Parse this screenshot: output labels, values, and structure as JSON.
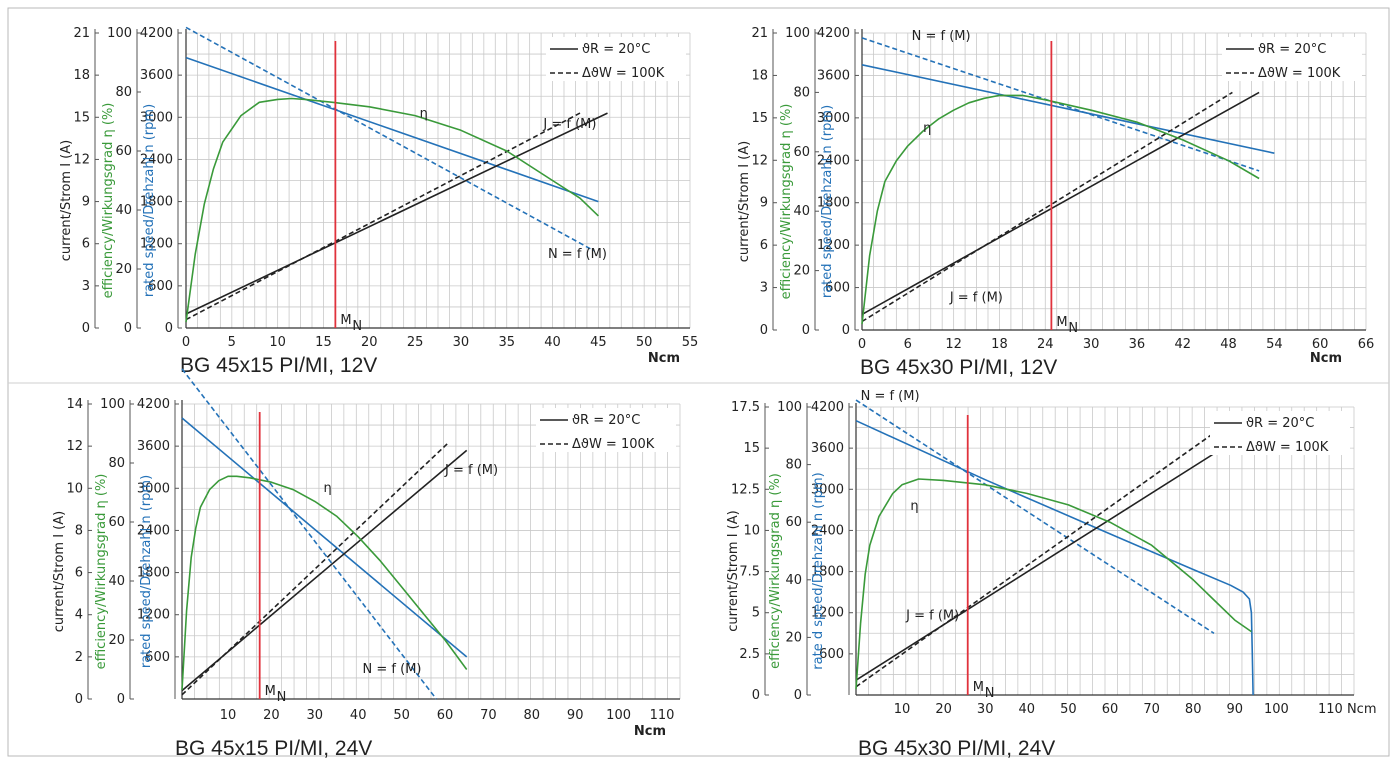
{
  "chart_data": [
    {
      "type": "line",
      "title": "BG 45x15 PI/MI, 12V",
      "xlabel": "Ncm",
      "x_ticks": [
        "0",
        "5",
        "10",
        "15",
        "20",
        "25",
        "30",
        "35",
        "40",
        "45",
        "50",
        "55"
      ],
      "xlim": [
        0,
        55
      ],
      "axes": {
        "current": {
          "label": "current/Strom I (A)",
          "ticks": [
            "0",
            "3",
            "6",
            "9",
            "12",
            "15",
            "18",
            "21"
          ],
          "lim": [
            0,
            21
          ],
          "color": "#222222"
        },
        "efficiency": {
          "label": "efficiency/Wirkungsgrad η (%)",
          "ticks": [
            "0",
            "20",
            "40",
            "60",
            "80",
            "100"
          ],
          "lim": [
            0,
            100
          ],
          "color": "#3a9a3a"
        },
        "speed": {
          "label": "rated speed/Drehzahl n (rpm)",
          "ticks": [
            "0",
            "600",
            "1200",
            "1800",
            "2400",
            "3000",
            "3600",
            "4200"
          ],
          "lim": [
            0,
            4200
          ],
          "color": "#2472b8"
        }
      },
      "legend": [
        "ϑR = 20°C",
        "ΔϑW = 100K"
      ],
      "marker": {
        "label": "M",
        "sub": "N",
        "x": 16.3
      },
      "curve_labels": [
        {
          "text": "η",
          "x": 25.5,
          "y": 3000,
          "color": "#3a9a3a"
        },
        {
          "text": "J = f (M)",
          "x": 39,
          "y": 2850,
          "color": "#222222"
        },
        {
          "text": "N = f (M)",
          "x": 39.5,
          "y": 1000,
          "color": "#2472b8"
        }
      ],
      "series": [
        {
          "key": "n20",
          "axis": "speed",
          "dash": false,
          "color": "#2472b8",
          "x": [
            0,
            45
          ],
          "y": [
            3850,
            1800
          ]
        },
        {
          "key": "n100",
          "axis": "speed",
          "dash": true,
          "color": "#2472b8",
          "x": [
            0,
            44.5
          ],
          "y": [
            4280,
            1100
          ]
        },
        {
          "key": "i20",
          "axis": "current",
          "dash": false,
          "color": "#222222",
          "x": [
            0,
            46
          ],
          "y": [
            1.0,
            15.3
          ]
        },
        {
          "key": "i100",
          "axis": "current",
          "dash": true,
          "color": "#222222",
          "x": [
            0,
            43
          ],
          "y": [
            0.6,
            15.3
          ]
        },
        {
          "key": "eta",
          "axis": "efficiency",
          "dash": false,
          "color": "#3a9a3a",
          "x": [
            0,
            1,
            2,
            3,
            4,
            6,
            8,
            10,
            11.5,
            13,
            16,
            20,
            25,
            30,
            35,
            40,
            43,
            45
          ],
          "y": [
            2,
            25,
            42,
            54,
            63,
            72,
            76.5,
            77.5,
            77.8,
            77.5,
            76.5,
            75,
            72,
            67,
            60,
            50,
            44,
            38
          ]
        }
      ]
    },
    {
      "type": "line",
      "title": "BG 45x30 PI/MI, 12V",
      "xlabel": "Ncm",
      "x_ticks": [
        "0",
        "6",
        "12",
        "18",
        "24",
        "30",
        "36",
        "42",
        "48",
        "54",
        "60",
        "66"
      ],
      "xlim": [
        0,
        66
      ],
      "axes": {
        "current": {
          "label": "current/Strom I (A)",
          "ticks": [
            "0",
            "3",
            "6",
            "9",
            "12",
            "15",
            "18",
            "21"
          ],
          "lim": [
            0,
            21
          ],
          "color": "#222222"
        },
        "efficiency": {
          "label": "efficiency/Wirkungsgrad η (%)",
          "ticks": [
            "0",
            "20",
            "40",
            "60",
            "80",
            "100"
          ],
          "lim": [
            0,
            100
          ],
          "color": "#3a9a3a"
        },
        "speed": {
          "label": "rated speed/Drehzahl n (rpm)",
          "ticks": [
            "0",
            "600",
            "1200",
            "1800",
            "2400",
            "3000",
            "3600",
            "4200"
          ],
          "lim": [
            0,
            4200
          ],
          "color": "#2472b8"
        }
      },
      "legend": [
        "ϑR = 20°C",
        "ΔϑW = 100K"
      ],
      "marker": {
        "label": "M",
        "sub": "N",
        "x": 24.8
      },
      "curve_labels": [
        {
          "text": "η",
          "x": 8,
          "y": 2800,
          "color": "#3a9a3a"
        },
        {
          "text": "J = f (M)",
          "x": 11.5,
          "y": 400,
          "color": "#222222"
        },
        {
          "text": "N = f (M)",
          "x": 6.5,
          "y": 4100,
          "color": "#2472b8"
        }
      ],
      "series": [
        {
          "key": "n20",
          "axis": "speed",
          "dash": false,
          "color": "#2472b8",
          "x": [
            0,
            54
          ],
          "y": [
            3750,
            2500
          ]
        },
        {
          "key": "n100",
          "axis": "speed",
          "dash": true,
          "color": "#2472b8",
          "x": [
            0,
            52
          ],
          "y": [
            4130,
            2250
          ]
        },
        {
          "key": "i20",
          "axis": "current",
          "dash": false,
          "color": "#222222",
          "x": [
            0,
            52
          ],
          "y": [
            1.1,
            16.8
          ]
        },
        {
          "key": "i100",
          "axis": "current",
          "dash": true,
          "color": "#222222",
          "x": [
            0,
            48.5
          ],
          "y": [
            0.6,
            16.8
          ]
        },
        {
          "key": "eta",
          "axis": "efficiency",
          "dash": false,
          "color": "#3a9a3a",
          "x": [
            0,
            1,
            2,
            3,
            4.5,
            6,
            8,
            10,
            12,
            14,
            16,
            18,
            21,
            24,
            30,
            36,
            42,
            48,
            52
          ],
          "y": [
            2,
            25,
            40,
            50,
            57,
            62,
            67,
            71,
            74,
            76.5,
            78,
            79,
            79,
            77.5,
            74,
            70,
            64,
            57,
            51
          ]
        }
      ]
    },
    {
      "type": "line",
      "title": "BG 45x15 PI/MI, 24V",
      "xlabel": "Ncm",
      "x_ticks": [
        "10",
        "20",
        "30",
        "40",
        "50",
        "60",
        "70",
        "80",
        "90",
        "100",
        "110"
      ],
      "xlim": [
        0,
        120
      ],
      "axes": {
        "current": {
          "label": "current/Strom I (A)",
          "ticks": [
            "0",
            "2",
            "4",
            "6",
            "8",
            "10",
            "12",
            "14"
          ],
          "lim": [
            0,
            14
          ],
          "color": "#222222"
        },
        "efficiency": {
          "label": "efficiency/Wirkungsgrad η (%)",
          "ticks": [
            "0",
            "20",
            "40",
            "60",
            "80",
            "100"
          ],
          "lim": [
            0,
            100
          ],
          "color": "#3a9a3a"
        },
        "speed": {
          "label": "rated speed/Drehzahl n (rpm)",
          "ticks": [
            "600",
            "1200",
            "1800",
            "2400",
            "3000",
            "3600",
            "4200"
          ],
          "lim": [
            0,
            4200
          ],
          "color": "#2472b8"
        }
      },
      "legend": [
        "ϑR = 20°C",
        "ΔϑW = 100K"
      ],
      "marker": {
        "label": "M",
        "sub": "N",
        "x": 17.3
      },
      "curve_labels": [
        {
          "text": "η",
          "x": 32,
          "y": 2950,
          "color": "#3a9a3a"
        },
        {
          "text": "J = f (M)",
          "x": 60,
          "y": 3200,
          "color": "#222222"
        },
        {
          "text": "N = f (M)",
          "x": 41,
          "y": 370,
          "color": "#2472b8"
        }
      ],
      "series": [
        {
          "key": "n20",
          "axis": "speed",
          "dash": false,
          "color": "#2472b8",
          "x": [
            0,
            65
          ],
          "y": [
            4000,
            600
          ]
        },
        {
          "key": "n100",
          "axis": "speed",
          "dash": true,
          "color": "#2472b8",
          "x": [
            0,
            58
          ],
          "y": [
            4700,
            0
          ]
        },
        {
          "key": "i20",
          "axis": "current",
          "dash": false,
          "color": "#222222",
          "x": [
            0,
            65
          ],
          "y": [
            0.4,
            11.8
          ]
        },
        {
          "key": "i100",
          "axis": "current",
          "dash": true,
          "color": "#222222",
          "x": [
            0,
            61
          ],
          "y": [
            0.2,
            12.2
          ]
        },
        {
          "key": "eta",
          "axis": "efficiency",
          "dash": false,
          "color": "#3a9a3a",
          "x": [
            0,
            1,
            2,
            3,
            4,
            6,
            8,
            10,
            12,
            15,
            20,
            25,
            30,
            35,
            40,
            45,
            50,
            55,
            60,
            65
          ],
          "y": [
            3,
            30,
            48,
            58,
            65,
            71,
            74,
            75.5,
            75.5,
            75,
            73.5,
            71,
            67,
            62,
            55,
            47,
            38,
            29,
            20,
            10
          ]
        }
      ]
    },
    {
      "type": "line",
      "title": "BG 45x30 PI/MI, 24V",
      "xlabel": "",
      "x_ticks": [
        "10",
        "20",
        "30",
        "40",
        "50",
        "60",
        "70",
        "80",
        "90",
        "100",
        "110 Ncm"
      ],
      "xlim": [
        0,
        120
      ],
      "axes": {
        "current": {
          "label": "current/Strom I (A)",
          "ticks": [
            "0",
            "2.5",
            "5",
            "7.5",
            "10",
            "12.5",
            "15",
            "17.5"
          ],
          "lim": [
            0,
            17.5
          ],
          "color": "#222222"
        },
        "efficiency": {
          "label": "efficiency/Wirkungsgrad η (%)",
          "ticks": [
            "0",
            "20",
            "40",
            "60",
            "80",
            "100"
          ],
          "lim": [
            0,
            100
          ],
          "color": "#3a9a3a"
        },
        "speed": {
          "label": "rate d speed/Drehzahl n (rpm)",
          "ticks": [
            "600",
            "1200",
            "1800",
            "2400",
            "3000",
            "3600",
            "4200"
          ],
          "lim": [
            0,
            4200
          ],
          "color": "#2472b8"
        }
      },
      "legend": [
        "ϑR = 20°C",
        "ΔϑW = 100K"
      ],
      "marker": {
        "label": "M",
        "sub": "N",
        "x": 25.8
      },
      "curve_labels": [
        {
          "text": "η",
          "x": 12,
          "y": 2700,
          "color": "#3a9a3a"
        },
        {
          "text": "J = f (M)",
          "x": 11,
          "y": 1100,
          "color": "#222222"
        },
        {
          "text": "N = f (M)",
          "x": 1,
          "y": 4300,
          "color": "#2472b8"
        }
      ],
      "series": [
        {
          "key": "n20",
          "axis": "speed",
          "dash": false,
          "color": "#2472b8",
          "x": [
            0,
            30,
            60,
            80,
            89,
            92,
            93.5,
            94,
            94.2,
            94.4
          ],
          "y": [
            4000,
            3140,
            2350,
            1830,
            1600,
            1500,
            1400,
            1200,
            600,
            0
          ]
        },
        {
          "key": "n100",
          "axis": "speed",
          "dash": true,
          "color": "#2472b8",
          "x": [
            0,
            85
          ],
          "y": [
            4300,
            900
          ]
        },
        {
          "key": "i20",
          "axis": "current",
          "dash": false,
          "color": "#222222",
          "x": [
            0,
            94
          ],
          "y": [
            0.9,
            16.1
          ]
        },
        {
          "key": "i100",
          "axis": "current",
          "dash": true,
          "color": "#222222",
          "x": [
            0,
            86
          ],
          "y": [
            0.5,
            16.1
          ]
        },
        {
          "key": "eta",
          "axis": "efficiency",
          "dash": false,
          "color": "#3a9a3a",
          "x": [
            0,
            1,
            2,
            3,
            5,
            8,
            10,
            14,
            20,
            30,
            40,
            50,
            60,
            70,
            80,
            85,
            90,
            94
          ],
          "y": [
            2,
            25,
            42,
            52,
            62,
            70,
            73,
            75,
            74.5,
            73,
            70,
            66,
            60,
            52,
            40,
            33,
            26,
            22
          ]
        }
      ]
    }
  ]
}
